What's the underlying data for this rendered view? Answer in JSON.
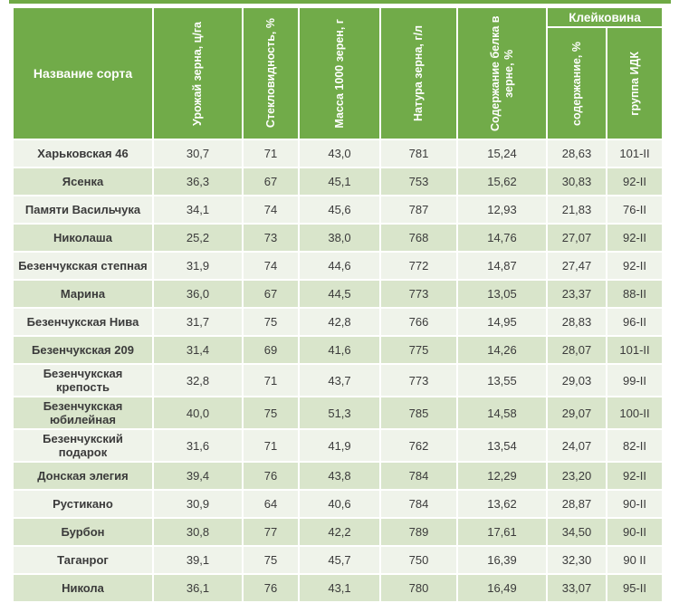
{
  "table": {
    "name_header": "Название сорта",
    "gluten_group_header": "Клейковина",
    "columns": [
      "Урожай зерна, ц/га",
      "Стекловидность, %",
      "Масса 1000 зерен, г",
      "Натура зерна, г/л",
      "Содержание белка в зерне, %"
    ],
    "gluten_columns": [
      "содержание, %",
      "группа ИДК"
    ],
    "rows": [
      {
        "name": "Харьковская 46",
        "values": [
          "30,7",
          "71",
          "43,0",
          "781",
          "15,24",
          "28,63",
          "101-II"
        ]
      },
      {
        "name": "Ясенка",
        "values": [
          "36,3",
          "67",
          "45,1",
          "753",
          "15,62",
          "30,83",
          "92-II"
        ]
      },
      {
        "name": "Памяти Васильчука",
        "values": [
          "34,1",
          "74",
          "45,6",
          "787",
          "12,93",
          "21,83",
          "76-II"
        ]
      },
      {
        "name": "Николаша",
        "values": [
          "25,2",
          "73",
          "38,0",
          "768",
          "14,76",
          "27,07",
          "92-II"
        ]
      },
      {
        "name": "Безенчукская степная",
        "values": [
          "31,9",
          "74",
          "44,6",
          "772",
          "14,87",
          "27,47",
          "92-II"
        ]
      },
      {
        "name": "Марина",
        "values": [
          "36,0",
          "67",
          "44,5",
          "773",
          "13,05",
          "23,37",
          "88-II"
        ]
      },
      {
        "name": "Безенчукская Нива",
        "values": [
          "31,7",
          "75",
          "42,8",
          "766",
          "14,95",
          "28,83",
          "96-II"
        ]
      },
      {
        "name": "Безенчукская 209",
        "values": [
          "31,4",
          "69",
          "41,6",
          "775",
          "14,26",
          "28,07",
          "101-II"
        ]
      },
      {
        "name": "Безенчукская крепость",
        "values": [
          "32,8",
          "71",
          "43,7",
          "773",
          "13,55",
          "29,03",
          "99-II"
        ]
      },
      {
        "name": "Безенчукская юбилейная",
        "values": [
          "40,0",
          "75",
          "51,3",
          "785",
          "14,58",
          "29,07",
          "100-II"
        ]
      },
      {
        "name": "Безенчукский подарок",
        "values": [
          "31,6",
          "71",
          "41,9",
          "762",
          "13,54",
          "24,07",
          "82-II"
        ]
      },
      {
        "name": "Донская элегия",
        "values": [
          "39,4",
          "76",
          "43,8",
          "784",
          "12,29",
          "23,20",
          "92-II"
        ]
      },
      {
        "name": "Рустикано",
        "values": [
          "30,9",
          "64",
          "40,6",
          "784",
          "13,62",
          "28,87",
          "90-II"
        ]
      },
      {
        "name": "Бурбон",
        "values": [
          "30,8",
          "77",
          "42,2",
          "789",
          "17,61",
          "34,50",
          "90-II"
        ]
      },
      {
        "name": "Таганрог",
        "values": [
          "39,1",
          "75",
          "45,7",
          "750",
          "16,39",
          "32,30",
          "90 II"
        ]
      },
      {
        "name": "Никола",
        "values": [
          "36,1",
          "76",
          "43,1",
          "780",
          "16,49",
          "33,07",
          "95-II"
        ]
      }
    ]
  },
  "colors": {
    "header_green": "#71AB49",
    "top_bar_green": "#6FA945",
    "band_light": "#EFF3EA",
    "band_dark": "#D9E5CB",
    "header_text": "#FFFFFF",
    "body_text": "#3B3B3B"
  }
}
